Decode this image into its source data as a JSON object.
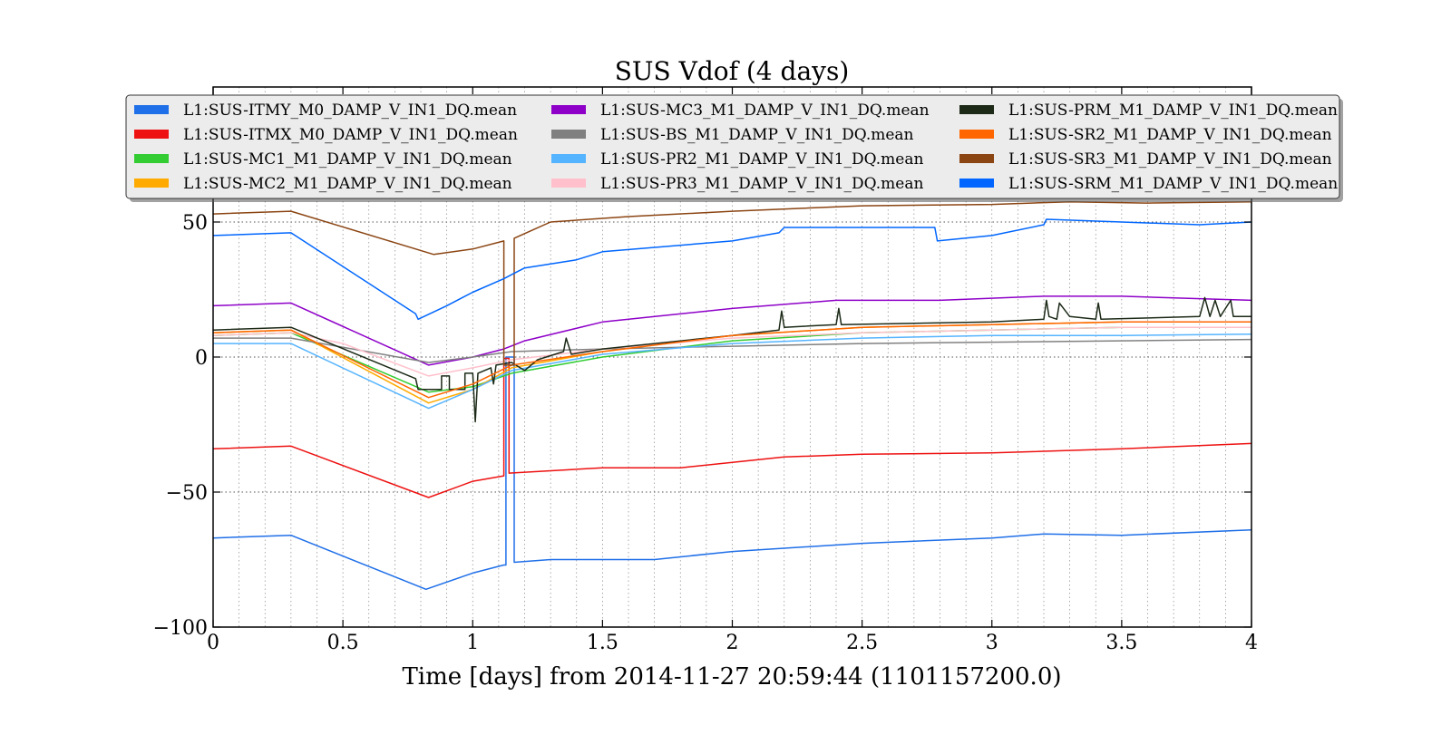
{
  "chart_data": {
    "type": "line",
    "title": "SUS Vdof (4 days)",
    "xlabel": "Time [days] from 2014-11-27 20:59:44 (1101157200.0)",
    "ylabel": "",
    "xlim": [
      0,
      4
    ],
    "ylim": [
      -100,
      100
    ],
    "x_ticks": [
      0,
      0.5,
      1,
      1.5,
      2,
      2.5,
      3,
      3.5,
      4
    ],
    "x_tick_labels": [
      "0",
      "0.5",
      "1",
      "1.5",
      "2",
      "2.5",
      "3",
      "3.5",
      "4"
    ],
    "y_ticks": [
      -100,
      -50,
      0,
      50
    ],
    "y_tick_labels": [
      "−100",
      "−50",
      "0",
      "50"
    ],
    "grid": true,
    "legend_position": "top",
    "series": [
      {
        "name": "L1:SUS-ITMY_M0_DAMP_V_IN1_DQ.mean",
        "color": "#1f6fe8",
        "points": [
          [
            0,
            -67
          ],
          [
            0.3,
            -66
          ],
          [
            0.82,
            -86
          ],
          [
            1.0,
            -80
          ],
          [
            1.12,
            -77
          ],
          [
            1.128,
            -77
          ],
          [
            1.128,
            0
          ],
          [
            1.16,
            0
          ],
          [
            1.16,
            -76
          ],
          [
            1.3,
            -75
          ],
          [
            1.7,
            -75
          ],
          [
            2.0,
            -72
          ],
          [
            2.5,
            -69
          ],
          [
            3.0,
            -67
          ],
          [
            3.2,
            -65.5
          ],
          [
            3.5,
            -66
          ],
          [
            4.0,
            -64
          ]
        ]
      },
      {
        "name": "L1:SUS-ITMX_M0_DAMP_V_IN1_DQ.mean",
        "color": "#ee1111",
        "points": [
          [
            0,
            -34
          ],
          [
            0.3,
            -33
          ],
          [
            0.83,
            -52
          ],
          [
            1.0,
            -46
          ],
          [
            1.12,
            -44
          ],
          [
            1.12,
            -0.5
          ],
          [
            1.14,
            -0.5
          ],
          [
            1.14,
            -43
          ],
          [
            1.5,
            -41
          ],
          [
            1.8,
            -41
          ],
          [
            2.2,
            -37
          ],
          [
            2.5,
            -36
          ],
          [
            3.0,
            -35.5
          ],
          [
            3.5,
            -34
          ],
          [
            4.0,
            -32
          ]
        ]
      },
      {
        "name": "L1:SUS-MC1_M1_DAMP_V_IN1_DQ.mean",
        "color": "#33cc33",
        "points": [
          [
            0,
            8
          ],
          [
            0.3,
            9
          ],
          [
            0.83,
            -13
          ],
          [
            1.0,
            -11
          ],
          [
            1.15,
            -6
          ],
          [
            1.5,
            0
          ],
          [
            2.0,
            6
          ],
          [
            2.5,
            9
          ],
          [
            3.0,
            10
          ],
          [
            3.5,
            11
          ],
          [
            4.0,
            11
          ]
        ]
      },
      {
        "name": "L1:SUS-MC2_M1_DAMP_V_IN1_DQ.mean",
        "color": "#ffaa00",
        "points": [
          [
            0,
            9
          ],
          [
            0.3,
            10
          ],
          [
            0.83,
            -17
          ],
          [
            1.0,
            -12
          ],
          [
            1.15,
            -4
          ],
          [
            1.5,
            2
          ],
          [
            2.0,
            8
          ],
          [
            2.5,
            11
          ],
          [
            3.0,
            12
          ],
          [
            3.5,
            13
          ],
          [
            4.0,
            13
          ]
        ]
      },
      {
        "name": "L1:SUS-MC3_M1_DAMP_V_IN1_DQ.mean",
        "color": "#8e00c8",
        "points": [
          [
            0,
            19
          ],
          [
            0.3,
            20
          ],
          [
            0.83,
            -3
          ],
          [
            1.0,
            0
          ],
          [
            1.12,
            3
          ],
          [
            1.2,
            6
          ],
          [
            1.5,
            13
          ],
          [
            2.0,
            18
          ],
          [
            2.4,
            21
          ],
          [
            2.8,
            21
          ],
          [
            3.2,
            22.5
          ],
          [
            3.5,
            22.5
          ],
          [
            4.0,
            21
          ]
        ]
      },
      {
        "name": "L1:SUS-BS_M1_DAMP_V_IN1_DQ.mean",
        "color": "#808080",
        "points": [
          [
            0,
            7
          ],
          [
            0.3,
            7
          ],
          [
            0.83,
            -2
          ],
          [
            1.0,
            0
          ],
          [
            1.15,
            2
          ],
          [
            1.5,
            3
          ],
          [
            2.0,
            4
          ],
          [
            2.5,
            5
          ],
          [
            3.0,
            5.5
          ],
          [
            3.5,
            6
          ],
          [
            4.0,
            6.5
          ]
        ]
      },
      {
        "name": "L1:SUS-PR2_M1_DAMP_V_IN1_DQ.mean",
        "color": "#55b4ff",
        "points": [
          [
            0,
            5
          ],
          [
            0.3,
            5
          ],
          [
            0.83,
            -19
          ],
          [
            1.0,
            -12
          ],
          [
            1.15,
            -5
          ],
          [
            1.5,
            1
          ],
          [
            2.0,
            5
          ],
          [
            2.5,
            7
          ],
          [
            3.0,
            8
          ],
          [
            3.5,
            8
          ],
          [
            4.0,
            8.5
          ]
        ]
      },
      {
        "name": "L1:SUS-PR3_M1_DAMP_V_IN1_DQ.mean",
        "color": "#ffc0cb",
        "points": [
          [
            0,
            8
          ],
          [
            0.3,
            9
          ],
          [
            0.5,
            5
          ],
          [
            0.83,
            -7
          ],
          [
            1.0,
            -4
          ],
          [
            1.15,
            -1
          ],
          [
            1.5,
            3
          ],
          [
            2.0,
            7
          ],
          [
            2.5,
            9
          ],
          [
            3.0,
            10
          ],
          [
            3.5,
            11
          ],
          [
            4.0,
            11
          ]
        ]
      },
      {
        "name": "L1:SUS-PRM_M1_DAMP_V_IN1_DQ.mean",
        "color": "#1c2a17",
        "points": [
          [
            0,
            10
          ],
          [
            0.3,
            11
          ],
          [
            0.78,
            -8
          ],
          [
            0.79,
            -12
          ],
          [
            0.88,
            -12
          ],
          [
            0.88,
            -7
          ],
          [
            0.91,
            -7
          ],
          [
            0.91,
            -12
          ],
          [
            0.97,
            -12
          ],
          [
            0.97,
            -6
          ],
          [
            1.0,
            -6
          ],
          [
            1.01,
            -24
          ],
          [
            1.02,
            -6
          ],
          [
            1.07,
            -4
          ],
          [
            1.08,
            -10
          ],
          [
            1.09,
            -3
          ],
          [
            1.15,
            -2
          ],
          [
            1.2,
            -5
          ],
          [
            1.25,
            -1
          ],
          [
            1.35,
            2
          ],
          [
            1.36,
            7
          ],
          [
            1.38,
            1
          ],
          [
            1.5,
            3
          ],
          [
            2.0,
            8
          ],
          [
            2.18,
            10
          ],
          [
            2.19,
            17
          ],
          [
            2.2,
            11
          ],
          [
            2.4,
            12
          ],
          [
            2.41,
            18
          ],
          [
            2.42,
            12
          ],
          [
            3.0,
            13
          ],
          [
            3.2,
            14
          ],
          [
            3.21,
            21
          ],
          [
            3.22,
            15
          ],
          [
            3.25,
            14
          ],
          [
            3.26,
            20
          ],
          [
            3.3,
            15
          ],
          [
            3.4,
            14
          ],
          [
            3.41,
            20
          ],
          [
            3.42,
            14
          ],
          [
            3.8,
            15
          ],
          [
            3.82,
            22
          ],
          [
            3.84,
            15
          ],
          [
            3.86,
            21
          ],
          [
            3.88,
            15
          ],
          [
            3.92,
            21
          ],
          [
            3.93,
            15
          ],
          [
            4.0,
            15
          ]
        ]
      },
      {
        "name": "L1:SUS-SR2_M1_DAMP_V_IN1_DQ.mean",
        "color": "#ff6600",
        "points": [
          [
            0,
            9
          ],
          [
            0.3,
            10
          ],
          [
            0.83,
            -15
          ],
          [
            1.0,
            -10
          ],
          [
            1.15,
            -3
          ],
          [
            1.5,
            2
          ],
          [
            2.0,
            8
          ],
          [
            2.5,
            11
          ],
          [
            3.0,
            12
          ],
          [
            3.5,
            13
          ],
          [
            4.0,
            13
          ]
        ]
      },
      {
        "name": "L1:SUS-SR3_M1_DAMP_V_IN1_DQ.mean",
        "color": "#8b4513",
        "points": [
          [
            0,
            53
          ],
          [
            0.3,
            54
          ],
          [
            0.85,
            38
          ],
          [
            1.0,
            40
          ],
          [
            1.12,
            43
          ],
          [
            1.12,
            -3
          ],
          [
            1.16,
            -3
          ],
          [
            1.16,
            44
          ],
          [
            1.3,
            50
          ],
          [
            1.6,
            52
          ],
          [
            2.0,
            54
          ],
          [
            2.5,
            56
          ],
          [
            3.0,
            56.5
          ],
          [
            3.3,
            57.5
          ],
          [
            3.6,
            57
          ],
          [
            4.0,
            57.5
          ]
        ]
      },
      {
        "name": "L1:SUS-SRM_M1_DAMP_V_IN1_DQ.mean",
        "color": "#0066ff",
        "points": [
          [
            0,
            45
          ],
          [
            0.3,
            46
          ],
          [
            0.78,
            16
          ],
          [
            0.79,
            14
          ],
          [
            0.9,
            19
          ],
          [
            1.0,
            24
          ],
          [
            1.12,
            29
          ],
          [
            1.16,
            31
          ],
          [
            1.2,
            33
          ],
          [
            1.4,
            36
          ],
          [
            1.5,
            39
          ],
          [
            2.0,
            43
          ],
          [
            2.18,
            46
          ],
          [
            2.2,
            48
          ],
          [
            2.5,
            48
          ],
          [
            2.78,
            48
          ],
          [
            2.79,
            43
          ],
          [
            3.0,
            45
          ],
          [
            3.2,
            49
          ],
          [
            3.21,
            51
          ],
          [
            3.5,
            50
          ],
          [
            3.8,
            49
          ],
          [
            4.0,
            50
          ]
        ]
      }
    ]
  }
}
